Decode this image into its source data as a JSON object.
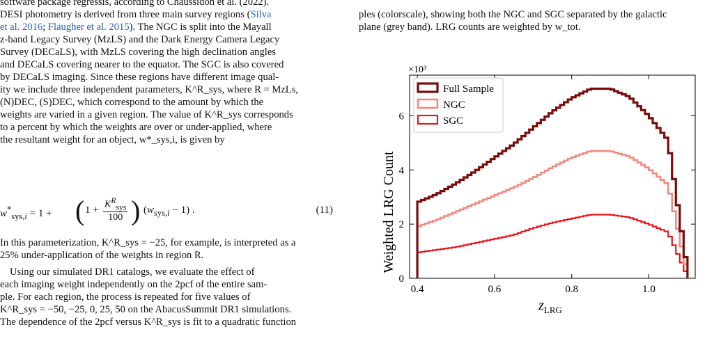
{
  "left_text": {
    "l0": "software package regressis, according to Chaussidon et al. (2022).",
    "l1a": "DESI photometry is derived from three main survey regions (",
    "l1b": "Silva",
    "l2a": "et al. 2016",
    "l2b": "; ",
    "l2c": "Flaugher et al. 2015",
    "l2d": "). The NGC is split into the Mayall",
    "l3": "z-band Legacy Survey (MzLS) and the Dark Energy Camera Legacy",
    "l4": "Survey (DECaLS), with MzLS covering the high declination angles",
    "l5": "and DECaLS covering nearer to the equator. The SGC is also covered",
    "l6": "by DECaLS imaging. Since these regions have different image qual-",
    "l7": "ity we include three independent parameters, K^R_sys, where R = MzLs,",
    "l8": "(N)DEC, (S)DEC, which correspond to the amount by which the",
    "l9": "weights are varied in a given region. The value of K^R_sys corresponds",
    "l10": "to a percent by which the weights are over or under-applied, where",
    "l11": "the resultant weight for an object, w*_sys,i, is given by",
    "eq_number": "(11)",
    "p2a": "In this parameterization, K^R_sys = −25, for example, is interpreted as a",
    "p2b": "25% under-application of the weights in region R.",
    "p3a": "Using our simulated DR1 catalogs, we evaluate the effect of",
    "p3b": "each imaging weight independently on the 2pcf of the entire sam-",
    "p3c": "ple. For each region, the process is repeated for five values of",
    "p3d": "K^R_sys = −50, −25, 0, 25, 50 on the AbacusSummit DR1 simulations.",
    "p3e": "The dependence of the 2pcf versus K^R_sys is fit to a quadratic function"
  },
  "caption": {
    "c1": "ples (colorscale), showing both the NGC and SGC separated by the galactic",
    "c2": "plane (grey band). LRG counts are weighted by w_tot."
  },
  "colors": {
    "full": "#7a0b0b",
    "ngc": "#f08a80",
    "sgc": "#e8141c"
  },
  "chart_data": {
    "type": "line",
    "style": "step histogram",
    "xlabel": "z_LRG",
    "ylabel": "Weighted LRG Count",
    "y_multiplier": "×10³",
    "xlim": [
      0.38,
      1.12
    ],
    "ylim": [
      0,
      7.5
    ],
    "x_ticks": [
      "0.4",
      "0.6",
      "0.8",
      "1.0"
    ],
    "y_ticks": [
      "0",
      "2",
      "4",
      "6"
    ],
    "legend_position": "top-left",
    "x": [
      0.4,
      0.45,
      0.5,
      0.55,
      0.6,
      0.65,
      0.7,
      0.75,
      0.8,
      0.85,
      0.9,
      0.95,
      1.0,
      1.05,
      1.1
    ],
    "series": [
      {
        "name": "Full Sample",
        "values": [
          2.8,
          3.1,
          3.5,
          3.95,
          4.45,
          4.95,
          5.55,
          6.15,
          6.65,
          7.0,
          7.0,
          6.7,
          6.0,
          5.1,
          0.3
        ]
      },
      {
        "name": "NGC",
        "values": [
          1.9,
          2.15,
          2.45,
          2.75,
          3.05,
          3.35,
          3.7,
          4.1,
          4.45,
          4.7,
          4.7,
          4.5,
          4.05,
          3.45,
          0.2
        ]
      },
      {
        "name": "SGC",
        "values": [
          0.95,
          1.05,
          1.15,
          1.3,
          1.45,
          1.6,
          1.85,
          2.05,
          2.2,
          2.35,
          2.35,
          2.25,
          2.0,
          1.7,
          0.1
        ]
      }
    ]
  }
}
